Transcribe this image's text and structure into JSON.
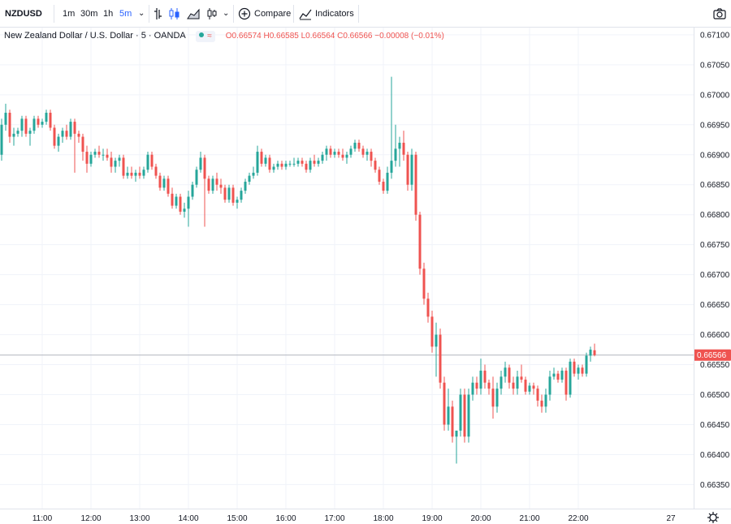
{
  "toolbar": {
    "symbol": "NZDUSD",
    "intervals": [
      "1m",
      "30m",
      "1h",
      "5m"
    ],
    "active_interval": "5m",
    "compare_label": "Compare",
    "indicators_label": "Indicators"
  },
  "legend": {
    "title": "New Zealand Dollar / U.S. Dollar · 5 · OANDA",
    "ohlc": "O0.66574 H0.66585 L0.66564 C0.66566 −0.00008 (−0.01%)"
  },
  "colors": {
    "up": "#26a69a",
    "down": "#ef5350",
    "grid": "#f0f3fa",
    "axis": "#e0e3eb"
  },
  "chart_data": {
    "type": "candlestick",
    "ylim": [
      0.6631,
      0.67112
    ],
    "price_ticks": [
      "0.67100",
      "0.67050",
      "0.67000",
      "0.66950",
      "0.66900",
      "0.66850",
      "0.66800",
      "0.66750",
      "0.66700",
      "0.66650",
      "0.66600",
      "0.66550",
      "0.66500",
      "0.66450",
      "0.66400",
      "0.66350"
    ],
    "time_ticks": [
      "11:00",
      "12:00",
      "13:00",
      "14:00",
      "15:00",
      "16:00",
      "17:00",
      "18:00",
      "19:00",
      "20:00",
      "21:00",
      "22:00",
      "27"
    ],
    "last_price": "0.66566",
    "candles": [
      [
        0.669,
        0.6696,
        0.6689,
        0.6695
      ],
      [
        0.6695,
        0.66985,
        0.6694,
        0.6697
      ],
      [
        0.6697,
        0.66975,
        0.6692,
        0.6693
      ],
      [
        0.6693,
        0.66945,
        0.66915,
        0.66935
      ],
      [
        0.66935,
        0.66945,
        0.6693,
        0.6694
      ],
      [
        0.6694,
        0.66965,
        0.6693,
        0.6696
      ],
      [
        0.6696,
        0.66965,
        0.6693,
        0.66935
      ],
      [
        0.66935,
        0.66945,
        0.66915,
        0.6694
      ],
      [
        0.6694,
        0.66965,
        0.66935,
        0.6696
      ],
      [
        0.6696,
        0.66965,
        0.66945,
        0.6695
      ],
      [
        0.6695,
        0.6696,
        0.66945,
        0.66955
      ],
      [
        0.66955,
        0.66975,
        0.6695,
        0.6697
      ],
      [
        0.6697,
        0.66975,
        0.6694,
        0.66945
      ],
      [
        0.66945,
        0.6695,
        0.6691,
        0.66915
      ],
      [
        0.66915,
        0.66935,
        0.66905,
        0.6693
      ],
      [
        0.6693,
        0.66945,
        0.6692,
        0.6694
      ],
      [
        0.6694,
        0.6695,
        0.66925,
        0.6693
      ],
      [
        0.6693,
        0.6696,
        0.66925,
        0.66955
      ],
      [
        0.66955,
        0.6696,
        0.6687,
        0.66935
      ],
      [
        0.66935,
        0.6694,
        0.6692,
        0.6693
      ],
      [
        0.6693,
        0.66935,
        0.6689,
        0.66905
      ],
      [
        0.66905,
        0.66915,
        0.6687,
        0.66885
      ],
      [
        0.66885,
        0.66905,
        0.6688,
        0.669
      ],
      [
        0.669,
        0.6691,
        0.66895,
        0.66905
      ],
      [
        0.66905,
        0.66915,
        0.66895,
        0.669
      ],
      [
        0.669,
        0.6691,
        0.6689,
        0.669
      ],
      [
        0.669,
        0.6691,
        0.6689,
        0.66895
      ],
      [
        0.66895,
        0.66905,
        0.6687,
        0.6688
      ],
      [
        0.6688,
        0.66895,
        0.6687,
        0.6689
      ],
      [
        0.6689,
        0.669,
        0.6688,
        0.66895
      ],
      [
        0.66895,
        0.669,
        0.6686,
        0.66865
      ],
      [
        0.66865,
        0.6688,
        0.6686,
        0.6687
      ],
      [
        0.6687,
        0.6688,
        0.6686,
        0.66865
      ],
      [
        0.66865,
        0.66875,
        0.66855,
        0.6687
      ],
      [
        0.6687,
        0.6688,
        0.6686,
        0.66865
      ],
      [
        0.66865,
        0.6688,
        0.6686,
        0.66875
      ],
      [
        0.66875,
        0.66905,
        0.6687,
        0.669
      ],
      [
        0.669,
        0.66905,
        0.66875,
        0.6688
      ],
      [
        0.6688,
        0.66885,
        0.6686,
        0.66865
      ],
      [
        0.66865,
        0.6687,
        0.6684,
        0.66845
      ],
      [
        0.66845,
        0.66865,
        0.6684,
        0.6686
      ],
      [
        0.6686,
        0.66865,
        0.6683,
        0.66835
      ],
      [
        0.66835,
        0.66845,
        0.6681,
        0.66815
      ],
      [
        0.66815,
        0.66835,
        0.6681,
        0.6683
      ],
      [
        0.6683,
        0.66835,
        0.668,
        0.66805
      ],
      [
        0.66805,
        0.6682,
        0.66795,
        0.6681
      ],
      [
        0.6681,
        0.6684,
        0.6678,
        0.6683
      ],
      [
        0.6683,
        0.66855,
        0.66825,
        0.6685
      ],
      [
        0.6685,
        0.6688,
        0.66845,
        0.66875
      ],
      [
        0.66875,
        0.66905,
        0.6687,
        0.66895
      ],
      [
        0.66895,
        0.669,
        0.6678,
        0.6686
      ],
      [
        0.6686,
        0.66865,
        0.66835,
        0.6684
      ],
      [
        0.6684,
        0.66865,
        0.66835,
        0.6686
      ],
      [
        0.6686,
        0.6687,
        0.6684,
        0.6685
      ],
      [
        0.6685,
        0.6686,
        0.66835,
        0.66845
      ],
      [
        0.66845,
        0.6685,
        0.6682,
        0.66825
      ],
      [
        0.66825,
        0.6685,
        0.6682,
        0.66845
      ],
      [
        0.66845,
        0.6685,
        0.66815,
        0.6682
      ],
      [
        0.6682,
        0.6683,
        0.6681,
        0.66825
      ],
      [
        0.66825,
        0.66845,
        0.6682,
        0.6684
      ],
      [
        0.6684,
        0.6686,
        0.66835,
        0.66855
      ],
      [
        0.66855,
        0.6687,
        0.6685,
        0.66865
      ],
      [
        0.66865,
        0.6688,
        0.6686,
        0.6687
      ],
      [
        0.6687,
        0.66915,
        0.66865,
        0.66905
      ],
      [
        0.66905,
        0.6691,
        0.6688,
        0.66885
      ],
      [
        0.66885,
        0.669,
        0.6688,
        0.66895
      ],
      [
        0.66895,
        0.669,
        0.6687,
        0.66875
      ],
      [
        0.66875,
        0.66885,
        0.6687,
        0.6688
      ],
      [
        0.6688,
        0.6689,
        0.66875,
        0.66885
      ],
      [
        0.66885,
        0.6689,
        0.66875,
        0.6688
      ],
      [
        0.6688,
        0.6689,
        0.66875,
        0.66885
      ],
      [
        0.66885,
        0.6689,
        0.6688,
        0.66885
      ],
      [
        0.66885,
        0.66895,
        0.6688,
        0.66885
      ],
      [
        0.66885,
        0.66895,
        0.6688,
        0.6689
      ],
      [
        0.6689,
        0.66895,
        0.6688,
        0.66885
      ],
      [
        0.66885,
        0.6689,
        0.6687,
        0.66875
      ],
      [
        0.66875,
        0.66895,
        0.6687,
        0.6689
      ],
      [
        0.6689,
        0.669,
        0.6688,
        0.66885
      ],
      [
        0.66885,
        0.66895,
        0.6688,
        0.6689
      ],
      [
        0.6689,
        0.66905,
        0.66885,
        0.669
      ],
      [
        0.669,
        0.66915,
        0.6689,
        0.6691
      ],
      [
        0.6691,
        0.66915,
        0.66895,
        0.669
      ],
      [
        0.669,
        0.6691,
        0.66895,
        0.66905
      ],
      [
        0.66905,
        0.6691,
        0.66895,
        0.669
      ],
      [
        0.669,
        0.6691,
        0.6689,
        0.66895
      ],
      [
        0.66895,
        0.66905,
        0.66885,
        0.669
      ],
      [
        0.669,
        0.66915,
        0.66895,
        0.6691
      ],
      [
        0.6691,
        0.66925,
        0.66905,
        0.6692
      ],
      [
        0.6692,
        0.66925,
        0.66905,
        0.6691
      ],
      [
        0.6691,
        0.66915,
        0.66895,
        0.669
      ],
      [
        0.669,
        0.6691,
        0.6689,
        0.66905
      ],
      [
        0.66905,
        0.6691,
        0.6688,
        0.6689
      ],
      [
        0.6689,
        0.66895,
        0.6687,
        0.66875
      ],
      [
        0.66875,
        0.6688,
        0.6685,
        0.66855
      ],
      [
        0.66855,
        0.6686,
        0.66835,
        0.6684
      ],
      [
        0.6684,
        0.6688,
        0.66835,
        0.6687
      ],
      [
        0.6687,
        0.6703,
        0.6686,
        0.6689
      ],
      [
        0.6689,
        0.6695,
        0.6688,
        0.6691
      ],
      [
        0.6691,
        0.6693,
        0.6688,
        0.6692
      ],
      [
        0.6692,
        0.6694,
        0.6689,
        0.669
      ],
      [
        0.669,
        0.66905,
        0.6684,
        0.6685
      ],
      [
        0.6685,
        0.6691,
        0.6684,
        0.669
      ],
      [
        0.669,
        0.66905,
        0.6679,
        0.668
      ],
      [
        0.668,
        0.66805,
        0.667,
        0.6671
      ],
      [
        0.6671,
        0.6672,
        0.6665,
        0.6666
      ],
      [
        0.6666,
        0.6667,
        0.6662,
        0.6663
      ],
      [
        0.6663,
        0.6664,
        0.6657,
        0.6658
      ],
      [
        0.6658,
        0.6662,
        0.6653,
        0.666
      ],
      [
        0.666,
        0.6661,
        0.6651,
        0.6652
      ],
      [
        0.6652,
        0.6653,
        0.6644,
        0.6645
      ],
      [
        0.6645,
        0.6651,
        0.6644,
        0.6648
      ],
      [
        0.6648,
        0.6649,
        0.6642,
        0.6643
      ],
      [
        0.6643,
        0.6644,
        0.66385,
        0.6644
      ],
      [
        0.6644,
        0.6651,
        0.6643,
        0.665
      ],
      [
        0.665,
        0.6651,
        0.6642,
        0.6643
      ],
      [
        0.6643,
        0.6651,
        0.6642,
        0.665
      ],
      [
        0.665,
        0.6653,
        0.6649,
        0.6652
      ],
      [
        0.6652,
        0.6653,
        0.665,
        0.6651
      ],
      [
        0.6651,
        0.6656,
        0.665,
        0.6654
      ],
      [
        0.6654,
        0.6655,
        0.6651,
        0.6652
      ],
      [
        0.6652,
        0.66525,
        0.665,
        0.6651
      ],
      [
        0.6651,
        0.6653,
        0.6646,
        0.6648
      ],
      [
        0.6648,
        0.6652,
        0.6647,
        0.6651
      ],
      [
        0.6651,
        0.6654,
        0.665,
        0.6653
      ],
      [
        0.6653,
        0.66555,
        0.6652,
        0.66545
      ],
      [
        0.66545,
        0.6655,
        0.6651,
        0.6652
      ],
      [
        0.6652,
        0.6653,
        0.665,
        0.6651
      ],
      [
        0.6651,
        0.6654,
        0.665,
        0.6653
      ],
      [
        0.6653,
        0.6655,
        0.6652,
        0.66525
      ],
      [
        0.66525,
        0.6653,
        0.665,
        0.66505
      ],
      [
        0.66505,
        0.6652,
        0.665,
        0.66515
      ],
      [
        0.66515,
        0.6652,
        0.665,
        0.6651
      ],
      [
        0.6651,
        0.66515,
        0.6648,
        0.6649
      ],
      [
        0.6649,
        0.665,
        0.6647,
        0.6648
      ],
      [
        0.6648,
        0.6651,
        0.6647,
        0.665
      ],
      [
        0.665,
        0.6654,
        0.6649,
        0.6653
      ],
      [
        0.6653,
        0.66545,
        0.66525,
        0.66535
      ],
      [
        0.66535,
        0.6654,
        0.6652,
        0.66525
      ],
      [
        0.66525,
        0.66545,
        0.6652,
        0.6654
      ],
      [
        0.6654,
        0.66545,
        0.6649,
        0.665
      ],
      [
        0.665,
        0.6656,
        0.66495,
        0.66555
      ],
      [
        0.66555,
        0.6656,
        0.6653,
        0.66535
      ],
      [
        0.66535,
        0.6655,
        0.66525,
        0.66545
      ],
      [
        0.66545,
        0.6655,
        0.6653,
        0.66535
      ],
      [
        0.66535,
        0.6657,
        0.6653,
        0.66565
      ],
      [
        0.66565,
        0.6658,
        0.66555,
        0.66575
      ],
      [
        0.66574,
        0.66585,
        0.66564,
        0.66566
      ]
    ]
  }
}
